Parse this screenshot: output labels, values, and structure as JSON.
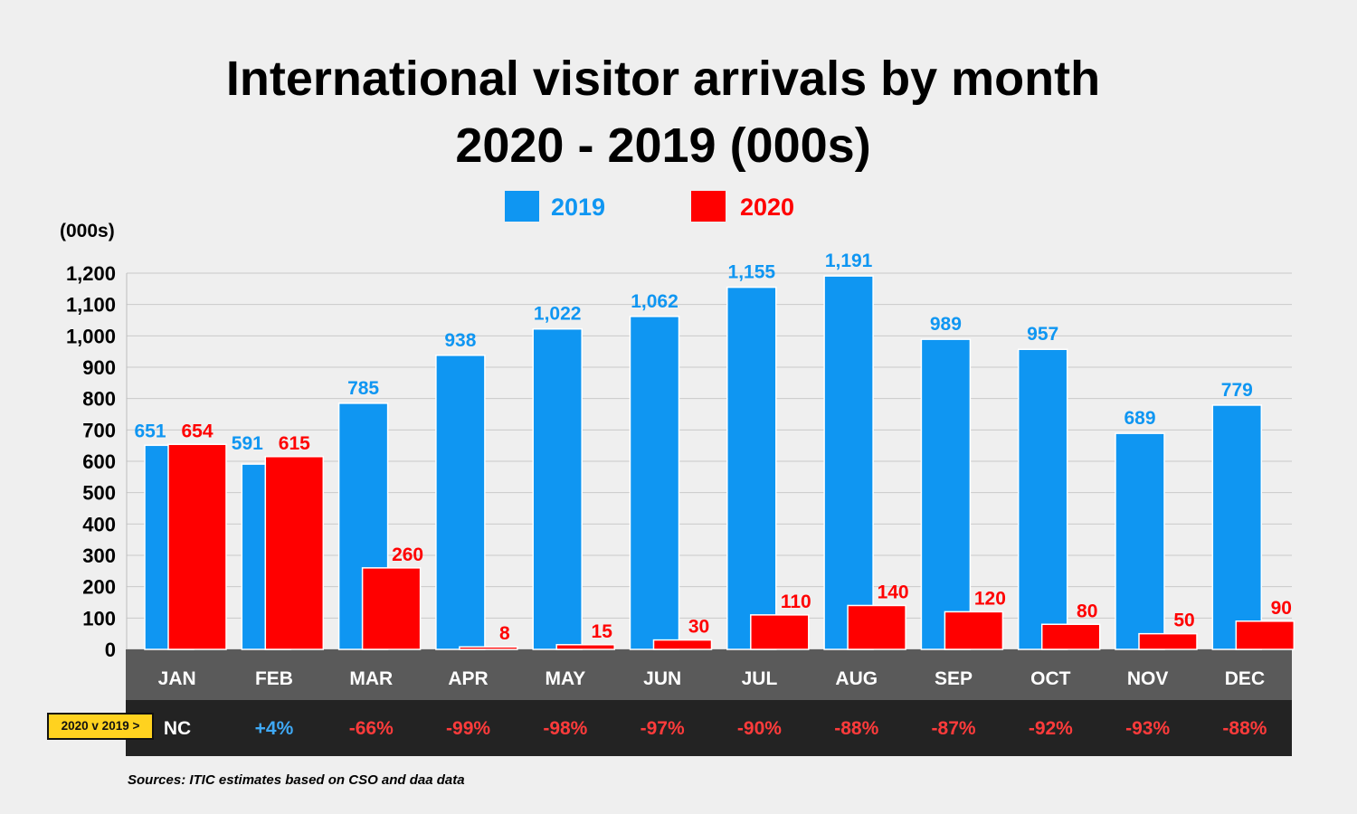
{
  "header": {
    "title_line1": "International visitor arrivals by month",
    "title_line2": "2020 - 2019 (000s)"
  },
  "y_unit_label": "(000s)",
  "comparison": {
    "label": "2020 v 2019 >",
    "values": [
      "NC",
      "+4%",
      "-66%",
      "-99%",
      "-98%",
      "-97%",
      "-90%",
      "-88%",
      "-87%",
      "-92%",
      "-93%",
      "-88%"
    ]
  },
  "source": "Sources: ITIC estimates based on CSO and daa data",
  "colors": {
    "series_2019": "#0f96f2",
    "series_2020": "#ff0000",
    "comparison_positive": "#3fa9f5",
    "comparison_negative": "#ff3b3b",
    "comparison_neutral": "#ffffff",
    "category_band": "#5a5a5a",
    "comparison_band": "#232323"
  },
  "chart_data": {
    "type": "bar",
    "title": "International visitor arrivals by month 2020 - 2019 (000s)",
    "ylabel": "(000s)",
    "categories": [
      "JAN",
      "FEB",
      "MAR",
      "APR",
      "MAY",
      "JUN",
      "JUL",
      "AUG",
      "SEP",
      "OCT",
      "NOV",
      "DEC"
    ],
    "series": [
      {
        "name": "2019",
        "values": [
          651,
          591,
          785,
          938,
          1022,
          1062,
          1155,
          1191,
          989,
          957,
          689,
          779
        ],
        "labels": [
          "651",
          "591",
          "785",
          "938",
          "1,022",
          "1,062",
          "1,155",
          "1,191",
          "989",
          "957",
          "689",
          "779"
        ]
      },
      {
        "name": "2020",
        "values": [
          654,
          615,
          260,
          8,
          15,
          30,
          110,
          140,
          120,
          80,
          50,
          90
        ],
        "labels": [
          "654",
          "615",
          "260",
          "8",
          "15",
          "30",
          "110",
          "140",
          "120",
          "80",
          "50",
          "90"
        ]
      }
    ],
    "ylim": [
      0,
      1200
    ],
    "yticks": [
      0,
      100,
      200,
      300,
      400,
      500,
      600,
      700,
      800,
      900,
      1000,
      1100,
      1200
    ],
    "ytick_labels": [
      "0",
      "100",
      "200",
      "300",
      "400",
      "500",
      "600",
      "700",
      "800",
      "900",
      "1,000",
      "1,100",
      "1,200"
    ],
    "grid": true,
    "legend_position": "top-center"
  }
}
